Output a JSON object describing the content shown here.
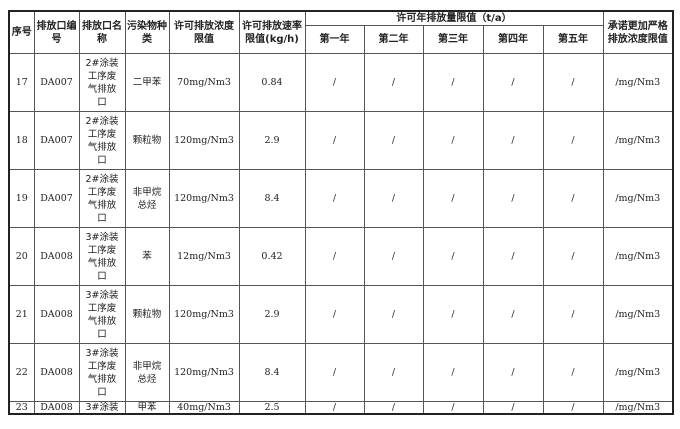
{
  "headers": {
    "seq": "序号",
    "outlet_id": "排放口编号",
    "outlet_name": "排放口名称",
    "pollutant": "污染物种类",
    "conc_limit": "许可排放浓度限值",
    "rate_limit": "许可排放速率限值(kg/h)",
    "annual_group": "许可年排放量限值（t/a）",
    "years": [
      "第一年",
      "第二年",
      "第三年",
      "第四年",
      "第五年"
    ],
    "stricter": "承诺更加严格排放浓度限值"
  },
  "rows": [
    {
      "seq": "17",
      "outlet_id": "DA007",
      "outlet_name": "2#涂装\n工序废\n气排放\n口",
      "pollutant": "二甲苯",
      "conc": "70mg/Nm3",
      "rate": "0.84",
      "years": [
        "/",
        "/",
        "/",
        "/",
        "/"
      ],
      "stricter": "/mg/Nm3"
    },
    {
      "seq": "18",
      "outlet_id": "DA007",
      "outlet_name": "2#涂装\n工序废\n气排放\n口",
      "pollutant": "颗粒物",
      "conc": "120mg/Nm3",
      "rate": "2.9",
      "years": [
        "/",
        "/",
        "/",
        "/",
        "/"
      ],
      "stricter": "/mg/Nm3"
    },
    {
      "seq": "19",
      "outlet_id": "DA007",
      "outlet_name": "2#涂装\n工序废\n气排放\n口",
      "pollutant": "非甲烷\n总烃",
      "conc": "120mg/Nm3",
      "rate": "8.4",
      "years": [
        "/",
        "/",
        "/",
        "/",
        "/"
      ],
      "stricter": "/mg/Nm3"
    },
    {
      "seq": "20",
      "outlet_id": "DA008",
      "outlet_name": "3#涂装\n工序废\n气排放\n口",
      "pollutant": "苯",
      "conc": "12mg/Nm3",
      "rate": "0.42",
      "years": [
        "/",
        "/",
        "/",
        "/",
        "/"
      ],
      "stricter": "/mg/Nm3"
    },
    {
      "seq": "21",
      "outlet_id": "DA008",
      "outlet_name": "3#涂装\n工序废\n气排放\n口",
      "pollutant": "颗粒物",
      "conc": "120mg/Nm3",
      "rate": "2.9",
      "years": [
        "/",
        "/",
        "/",
        "/",
        "/"
      ],
      "stricter": "/mg/Nm3"
    },
    {
      "seq": "22",
      "outlet_id": "DA008",
      "outlet_name": "3#涂装\n工序废\n气排放\n口",
      "pollutant": "非甲烷\n总烃",
      "conc": "120mg/Nm3",
      "rate": "8.4",
      "years": [
        "/",
        "/",
        "/",
        "/",
        "/"
      ],
      "stricter": "/mg/Nm3"
    },
    {
      "seq": "23",
      "outlet_id": "DA008",
      "outlet_name": "3#涂装",
      "pollutant": "甲苯",
      "conc": "40mg/Nm3",
      "rate": "2.5",
      "years": [
        "/",
        "/",
        "/",
        "/",
        "/"
      ],
      "stricter": "/mg/Nm3"
    }
  ]
}
